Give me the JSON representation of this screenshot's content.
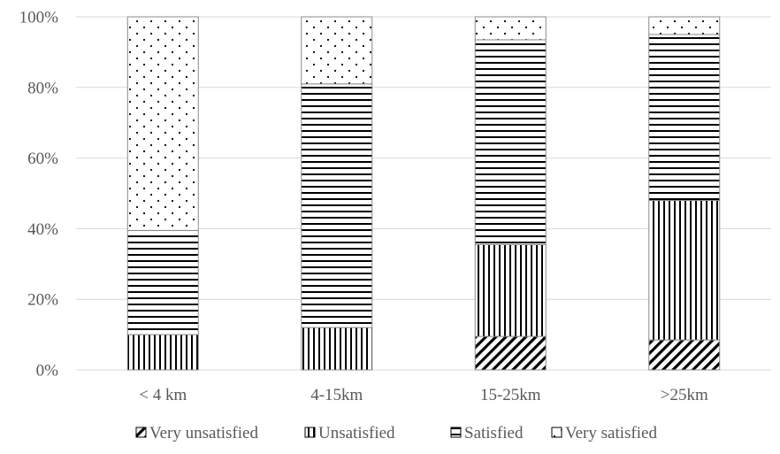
{
  "chart_data": {
    "type": "bar",
    "stacked": true,
    "categories": [
      "< 4 km",
      "4-15km",
      "15-25km",
      ">25km"
    ],
    "series": [
      {
        "name": "Very unsatisfied",
        "pattern": "diagonal",
        "values": [
          0,
          0,
          9.5,
          8.5
        ]
      },
      {
        "name": "Unsatisfied",
        "pattern": "vertical",
        "values": [
          10,
          12,
          26,
          39.5
        ]
      },
      {
        "name": "Satisfied",
        "pattern": "horizontal",
        "values": [
          29.5,
          69,
          58,
          47
        ]
      },
      {
        "name": "Very satisfied",
        "pattern": "dots",
        "values": [
          60.5,
          19,
          6.5,
          5
        ]
      }
    ],
    "yticks": [
      "0%",
      "20%",
      "40%",
      "60%",
      "80%",
      "100%"
    ],
    "ylim": [
      0,
      100
    ],
    "grid": true,
    "legend_position": "bottom",
    "colors": {
      "ink": "#000000",
      "grid": "#d9d9d9",
      "text": "#595959",
      "border": "#8c8c8c"
    }
  }
}
